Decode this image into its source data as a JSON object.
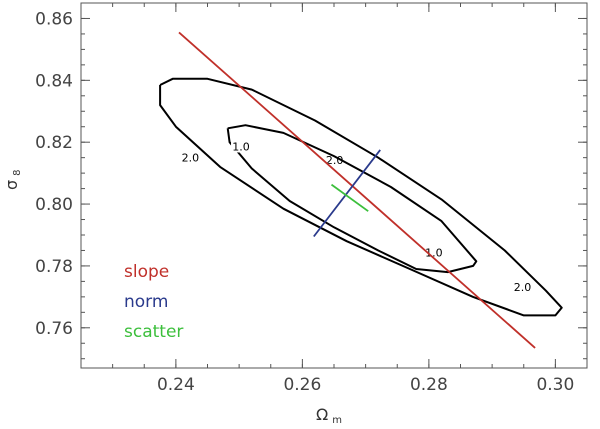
{
  "chart_data": {
    "type": "line",
    "xlabel": "Ω",
    "xlabel_sub": "m",
    "ylabel": "σ",
    "ylabel_sub": "8",
    "xlim": [
      0.225,
      0.305
    ],
    "ylim": [
      0.747,
      0.865
    ],
    "xticks": [
      0.24,
      0.26,
      0.28,
      0.3
    ],
    "xtick_labels": [
      "0.24",
      "0.26",
      "0.28",
      "0.30"
    ],
    "yticks": [
      0.76,
      0.78,
      0.8,
      0.82,
      0.84,
      0.86
    ],
    "ytick_labels": [
      "0.76",
      "0.78",
      "0.80",
      "0.82",
      "0.84",
      "0.86"
    ],
    "grid": false,
    "legend_position": "bottom-left",
    "contours": [
      {
        "level": "2.0",
        "color": "#000000",
        "points": [
          [
            0.2375,
            0.8385
          ],
          [
            0.2395,
            0.8405
          ],
          [
            0.245,
            0.8405
          ],
          [
            0.252,
            0.837
          ],
          [
            0.262,
            0.827
          ],
          [
            0.272,
            0.815
          ],
          [
            0.282,
            0.8015
          ],
          [
            0.292,
            0.785
          ],
          [
            0.2985,
            0.772
          ],
          [
            0.301,
            0.7665
          ],
          [
            0.3,
            0.764
          ],
          [
            0.295,
            0.764
          ],
          [
            0.287,
            0.77
          ],
          [
            0.277,
            0.779
          ],
          [
            0.267,
            0.788
          ],
          [
            0.257,
            0.7985
          ],
          [
            0.247,
            0.812
          ],
          [
            0.24,
            0.825
          ],
          [
            0.2375,
            0.832
          ],
          [
            0.2375,
            0.8385
          ]
        ],
        "labels": [
          {
            "text": "2.0",
            "x": 0.2423,
            "y": 0.8148
          },
          {
            "text": "2.0",
            "x": 0.2651,
            "y": 0.8139
          },
          {
            "text": "2.0",
            "x": 0.2948,
            "y": 0.7729
          }
        ]
      },
      {
        "level": "1.0",
        "color": "#000000",
        "points": [
          [
            0.2482,
            0.8245
          ],
          [
            0.251,
            0.8255
          ],
          [
            0.257,
            0.823
          ],
          [
            0.265,
            0.8155
          ],
          [
            0.274,
            0.8055
          ],
          [
            0.282,
            0.7945
          ],
          [
            0.2875,
            0.7815
          ],
          [
            0.287,
            0.78
          ],
          [
            0.283,
            0.778
          ],
          [
            0.278,
            0.779
          ],
          [
            0.272,
            0.785
          ],
          [
            0.265,
            0.7925
          ],
          [
            0.258,
            0.801
          ],
          [
            0.252,
            0.8115
          ],
          [
            0.2485,
            0.82
          ],
          [
            0.2482,
            0.8245
          ]
        ],
        "labels": [
          {
            "text": "1.0",
            "x": 0.2503,
            "y": 0.8183
          },
          {
            "text": "1.0",
            "x": 0.2808,
            "y": 0.784
          }
        ]
      }
    ],
    "series": [
      {
        "name": "slope",
        "color": "#c0302a",
        "x": [
          0.2405,
          0.2968
        ],
        "y": [
          0.8555,
          0.7535
        ]
      },
      {
        "name": "norm",
        "color": "#2a3a8c",
        "x": [
          0.2618,
          0.2723
        ],
        "y": [
          0.7895,
          0.8175
        ]
      },
      {
        "name": "scatter",
        "color": "#3cbf3c",
        "x": [
          0.2646,
          0.2704
        ],
        "y": [
          0.8063,
          0.7977
        ]
      }
    ]
  }
}
